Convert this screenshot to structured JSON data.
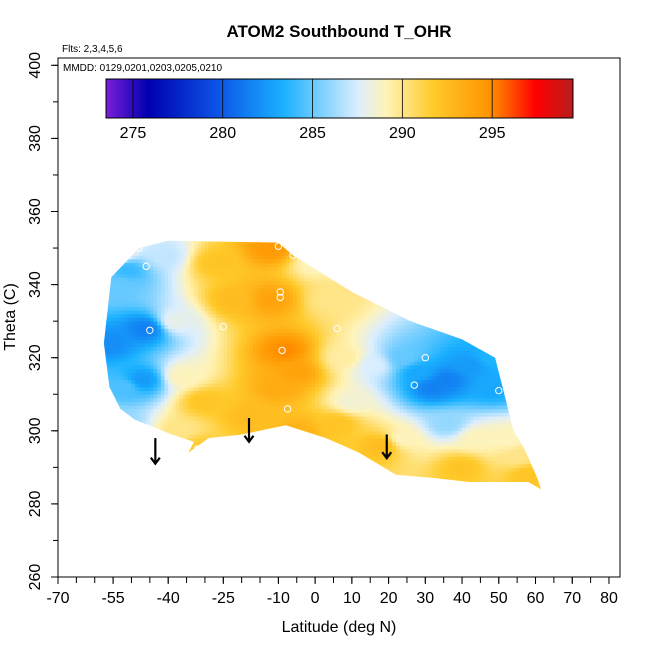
{
  "chart_data": {
    "type": "heatmap",
    "title": "ATOM2 Southbound T_OHR",
    "flights_note": "Flts: 2,3,4,5,6",
    "dates_note": "MMDD: 0129,0201,0203,0205,0210",
    "xlabel": "Latitude (deg N)",
    "ylabel": "Theta (C)",
    "xlim": [
      -70,
      83
    ],
    "ylim": [
      260,
      402
    ],
    "x_ticks": [
      -70,
      -55,
      -40,
      -25,
      -10,
      0,
      10,
      20,
      30,
      40,
      50,
      60,
      70,
      80
    ],
    "x_tick_labels": [
      "-70",
      "-55",
      "-40",
      "-25",
      "-10",
      "0",
      "10",
      "20",
      "30",
      "40",
      "50",
      "60",
      "70",
      "80"
    ],
    "y_ticks": [
      260,
      280,
      300,
      320,
      340,
      360,
      380,
      400
    ],
    "y_tick_labels": [
      "260",
      "280",
      "300",
      "320",
      "340",
      "360",
      "380",
      "400"
    ],
    "colorbar": {
      "range": [
        273.5,
        299.5
      ],
      "ticks": [
        275,
        280,
        285,
        290,
        295
      ],
      "tick_labels": [
        "275",
        "280",
        "285",
        "290",
        "295"
      ],
      "colors": [
        "#7a1fd8",
        "#0000b0",
        "#0c54e6",
        "#1ab1ff",
        "#dceefe",
        "#fff3b8",
        "#ffca2b",
        "#ff9500",
        "#ff0000",
        "#b71d1d"
      ],
      "color_positions": [
        0,
        0.09,
        0.24,
        0.38,
        0.54,
        0.6,
        0.7,
        0.82,
        0.92,
        1
      ]
    },
    "field_anchors": [
      {
        "lat": -54,
        "theta": 349,
        "value": 289
      },
      {
        "lat": -53,
        "theta": 340,
        "value": 285
      },
      {
        "lat": -51,
        "theta": 344,
        "value": 284
      },
      {
        "lat": -46,
        "theta": 328,
        "value": 281.5
      },
      {
        "lat": -47,
        "theta": 314,
        "value": 282.5
      },
      {
        "lat": -56,
        "theta": 324,
        "value": 282
      },
      {
        "lat": -52,
        "theta": 312,
        "value": 284.5
      },
      {
        "lat": -53,
        "theta": 302,
        "value": 286
      },
      {
        "lat": -41,
        "theta": 348,
        "value": 287
      },
      {
        "lat": -38,
        "theta": 330,
        "value": 288
      },
      {
        "lat": -36,
        "theta": 315,
        "value": 289
      },
      {
        "lat": -36,
        "theta": 300,
        "value": 290
      },
      {
        "lat": -32,
        "theta": 296,
        "value": 291.5
      },
      {
        "lat": -30,
        "theta": 308,
        "value": 292
      },
      {
        "lat": -27,
        "theta": 346,
        "value": 292
      },
      {
        "lat": -22,
        "theta": 336,
        "value": 292.5
      },
      {
        "lat": -18,
        "theta": 304,
        "value": 292.5
      },
      {
        "lat": -12,
        "theta": 350,
        "value": 294.5
      },
      {
        "lat": -12,
        "theta": 336,
        "value": 294
      },
      {
        "lat": -8,
        "theta": 322,
        "value": 295
      },
      {
        "lat": -5,
        "theta": 316,
        "value": 294
      },
      {
        "lat": -10,
        "theta": 312,
        "value": 293.5
      },
      {
        "lat": -4,
        "theta": 300,
        "value": 293
      },
      {
        "lat": 0,
        "theta": 346,
        "value": 289
      },
      {
        "lat": 4,
        "theta": 336,
        "value": 290
      },
      {
        "lat": 8,
        "theta": 320,
        "value": 289.5
      },
      {
        "lat": 10,
        "theta": 308,
        "value": 288.5
      },
      {
        "lat": 6,
        "theta": 302,
        "value": 292
      },
      {
        "lat": 18,
        "theta": 296,
        "value": 292.5
      },
      {
        "lat": 16,
        "theta": 318,
        "value": 287.5
      },
      {
        "lat": 24,
        "theta": 320,
        "value": 285
      },
      {
        "lat": 28,
        "theta": 316,
        "value": 283
      },
      {
        "lat": 32,
        "theta": 312,
        "value": 281.5
      },
      {
        "lat": 36,
        "theta": 314,
        "value": 281.5
      },
      {
        "lat": 42,
        "theta": 318,
        "value": 282.5
      },
      {
        "lat": 48,
        "theta": 320,
        "value": 283.5
      },
      {
        "lat": 48,
        "theta": 312,
        "value": 283
      },
      {
        "lat": 36,
        "theta": 302,
        "value": 286
      },
      {
        "lat": 44,
        "theta": 298,
        "value": 289
      },
      {
        "lat": 52,
        "theta": 298,
        "value": 289
      },
      {
        "lat": 55,
        "theta": 293,
        "value": 290
      },
      {
        "lat": 40,
        "theta": 290,
        "value": 292
      },
      {
        "lat": 58,
        "theta": 288,
        "value": 292
      },
      {
        "lat": 24,
        "theta": 298,
        "value": 289
      }
    ],
    "domain_polygon": [
      [
        -57.5,
        324
      ],
      [
        -55.5,
        342
      ],
      [
        -48,
        350
      ],
      [
        -40,
        352
      ],
      [
        -10,
        351.5
      ],
      [
        -6,
        348
      ],
      [
        10,
        338
      ],
      [
        26,
        330
      ],
      [
        40,
        325
      ],
      [
        49,
        320
      ],
      [
        51,
        312
      ],
      [
        54,
        300
      ],
      [
        57,
        295
      ],
      [
        60.5,
        287
      ],
      [
        61.5,
        284
      ],
      [
        58,
        286
      ],
      [
        42,
        286
      ],
      [
        33,
        287
      ],
      [
        22,
        288
      ],
      [
        12,
        294
      ],
      [
        3,
        298
      ],
      [
        -8,
        301.5
      ],
      [
        -20,
        299
      ],
      [
        -29,
        298
      ],
      [
        -34.5,
        294
      ],
      [
        -33,
        297
      ],
      [
        -39,
        299
      ],
      [
        -44,
        301
      ],
      [
        -49,
        303
      ],
      [
        -53,
        306
      ],
      [
        -56,
        312
      ]
    ],
    "sample_points": [
      {
        "lat": -46,
        "theta": 345
      },
      {
        "lat": -45,
        "theta": 327.5
      },
      {
        "lat": -25,
        "theta": 328.5
      },
      {
        "lat": -10,
        "theta": 350.5
      },
      {
        "lat": -6,
        "theta": 348
      },
      {
        "lat": -9.5,
        "theta": 338
      },
      {
        "lat": -9.5,
        "theta": 336.5
      },
      {
        "lat": -9,
        "theta": 322
      },
      {
        "lat": -7.5,
        "theta": 306
      },
      {
        "lat": 6,
        "theta": 328
      },
      {
        "lat": 30,
        "theta": 320
      },
      {
        "lat": 27,
        "theta": 312.5
      },
      {
        "lat": 50,
        "theta": 311
      },
      {
        "lat": -32,
        "theta": 295
      },
      {
        "lat": -48,
        "theta": 350
      }
    ],
    "arrows": [
      {
        "lat": -43.5,
        "theta_top": 298,
        "theta_tip": 291
      },
      {
        "lat": -18,
        "theta_top": 303.5,
        "theta_tip": 297
      },
      {
        "lat": 19.5,
        "theta_top": 299,
        "theta_tip": 292.5
      }
    ]
  }
}
